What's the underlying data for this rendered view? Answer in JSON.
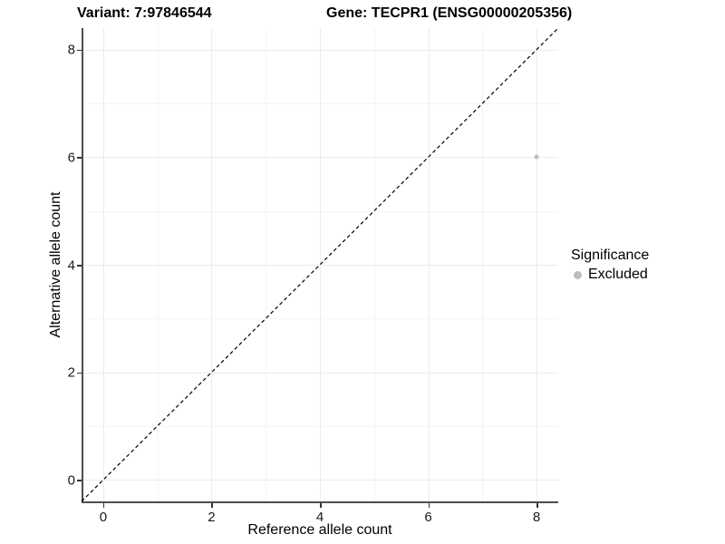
{
  "header": {
    "variant_title": "Variant: 7:97846544",
    "gene_title": "Gene: TECPR1 (ENSG00000205356)"
  },
  "chart_data": {
    "type": "scatter",
    "title_left": "Variant: 7:97846544",
    "title_right": "Gene: TECPR1 (ENSG00000205356)",
    "xlabel": "Reference allele count",
    "ylabel": "Alternative allele count",
    "xlim": [
      -0.4,
      8.4
    ],
    "ylim": [
      -0.4,
      8.4
    ],
    "xticks": [
      0,
      2,
      4,
      6,
      8
    ],
    "yticks": [
      0,
      2,
      4,
      6,
      8
    ],
    "x_minor": [
      1,
      3,
      5,
      7
    ],
    "y_minor": [
      1,
      3,
      5,
      7
    ],
    "grid": "on",
    "identity_line": {
      "from": [
        -0.4,
        -0.4
      ],
      "to": [
        8.4,
        8.4
      ],
      "style": "dashed",
      "color": "#000000"
    },
    "series": [
      {
        "name": "Excluded",
        "color": "#bdbdbd",
        "point_size": 5,
        "points": [
          {
            "x": 8,
            "y": 6
          }
        ]
      }
    ],
    "legend": {
      "title": "Significance",
      "position": "right",
      "items": [
        {
          "label": "Excluded",
          "color": "#bdbdbd",
          "key_size": 9
        }
      ]
    }
  },
  "colors": {
    "background": "#ffffff",
    "grid_major": "#ebebeb",
    "grid_minor": "#f4f4f4",
    "axis_line": "#4d4d4d",
    "tick": "#333333",
    "text": "#000000",
    "point": "#bdbdbd"
  }
}
